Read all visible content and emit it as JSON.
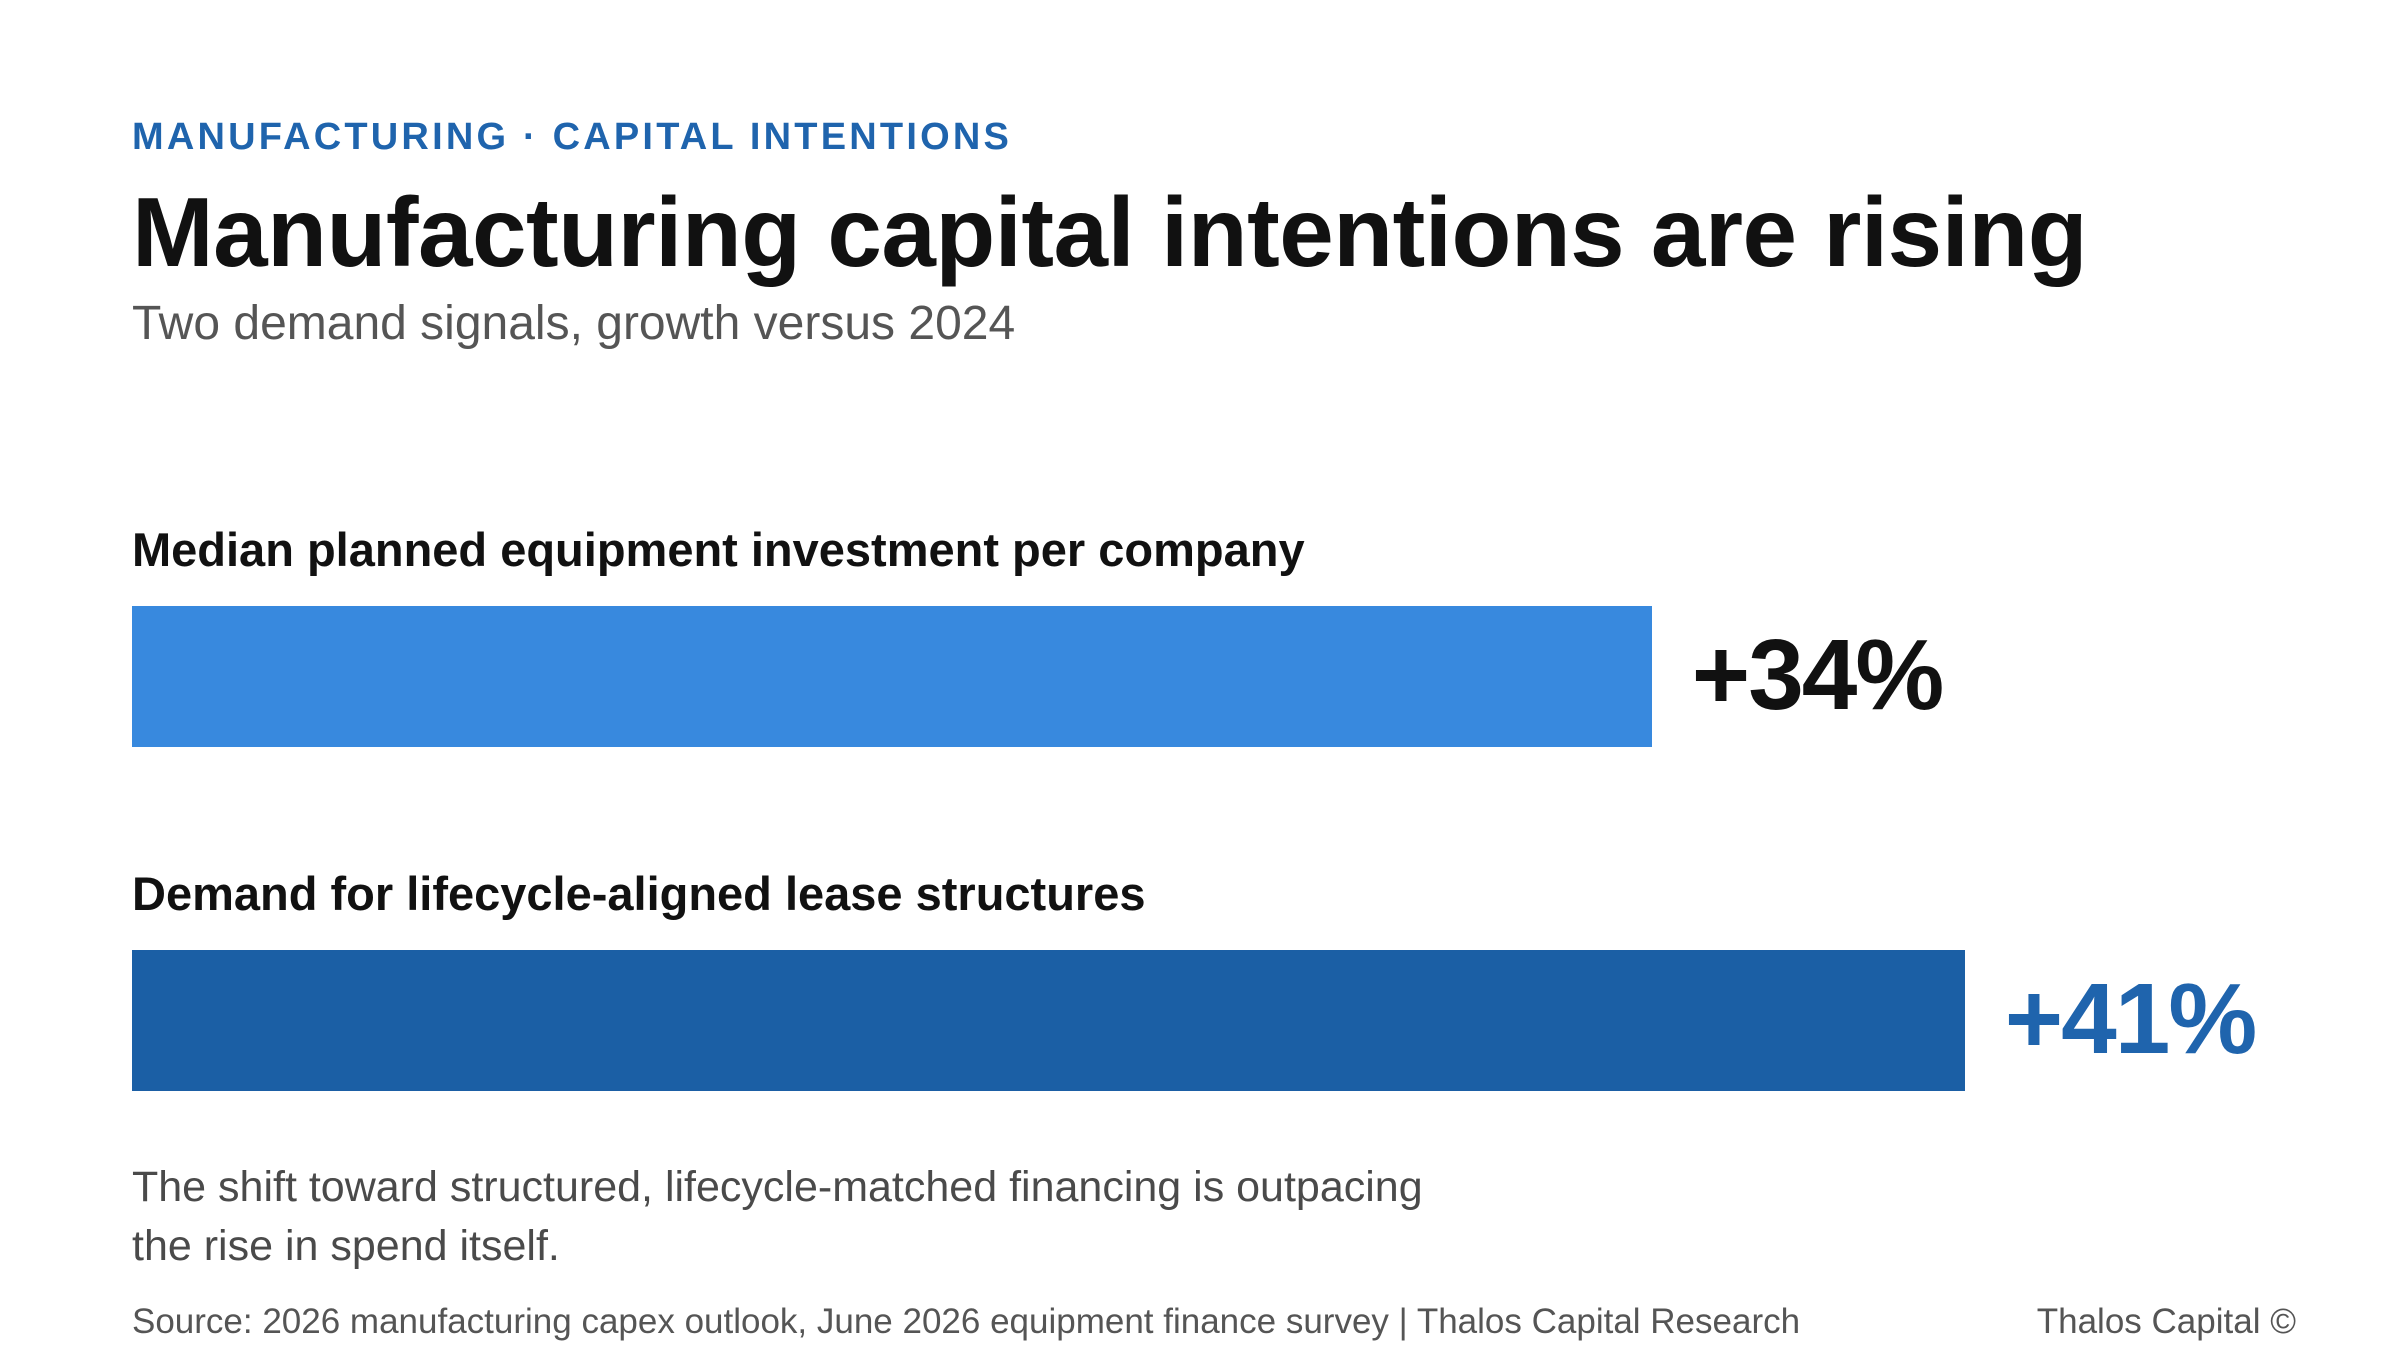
{
  "header": {
    "eyebrow": "MANUFACTURING · CAPITAL INTENTIONS",
    "title": "Manufacturing capital intentions are rising",
    "subtitle": "Two demand signals, growth versus 2024"
  },
  "chart_data": {
    "type": "bar",
    "orientation": "horizontal",
    "unit": "%",
    "grid": false,
    "xlim": [
      0,
      50
    ],
    "categories": [
      "Median planned equipment investment per company",
      "Demand for lifecycle-aligned lease structures"
    ],
    "values": [
      34,
      41
    ],
    "value_labels": [
      "+34%",
      "+41%"
    ],
    "colors": [
      "#3889de",
      "#1b5fa5"
    ],
    "value_label_colors": [
      "#111111",
      "#1f64ad"
    ]
  },
  "footer": {
    "takeaway": "The shift toward structured, lifecycle-matched financing is outpacing the rise in spend itself.",
    "source": "Source: 2026 manufacturing capex outlook, June 2026 equipment finance survey | Thalos Capital Research",
    "brand": "Thalos Capital ©"
  }
}
